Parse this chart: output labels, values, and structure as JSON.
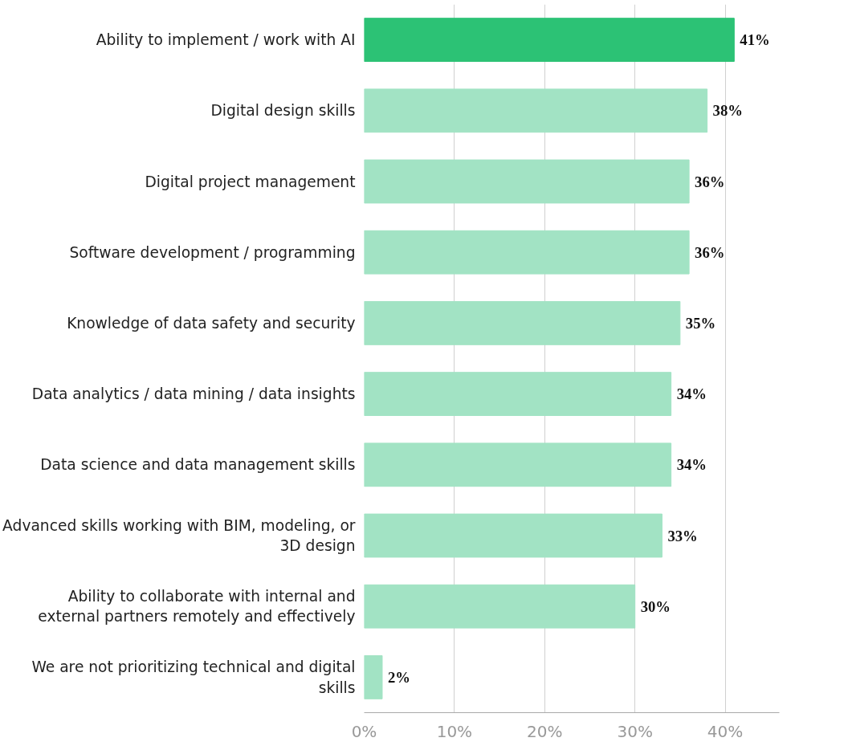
{
  "chart_data": {
    "type": "bar",
    "orientation": "horizontal",
    "categories": [
      "Ability to implement / work with AI",
      "Digital design skills",
      "Digital project management",
      "Software development / programming",
      "Knowledge of data safety and security",
      "Data analytics / data mining / data insights",
      "Data science and data management skills",
      "Advanced skills working with BIM, modeling, or 3D design",
      "Ability to collaborate with internal and external partners remotely and effectively",
      "We are not prioritizing technical and digital skills"
    ],
    "values": [
      41,
      38,
      36,
      36,
      35,
      34,
      34,
      33,
      30,
      2
    ],
    "colors": [
      "#2cc275",
      "#a2e3c4",
      "#a2e3c4",
      "#a2e3c4",
      "#a2e3c4",
      "#a2e3c4",
      "#a2e3c4",
      "#a2e3c4",
      "#a2e3c4",
      "#a2e3c4"
    ],
    "value_labels": [
      "41%",
      "38%",
      "36%",
      "36%",
      "35%",
      "34%",
      "34%",
      "33%",
      "30%",
      "2%"
    ],
    "xlim": [
      0,
      46
    ],
    "xticks": [
      {
        "value": 0,
        "label": "0%"
      },
      {
        "value": 10,
        "label": "10%"
      },
      {
        "value": 20,
        "label": "20%"
      },
      {
        "value": 30,
        "label": "30%"
      },
      {
        "value": 40,
        "label": "40%"
      }
    ],
    "grid": "x"
  }
}
